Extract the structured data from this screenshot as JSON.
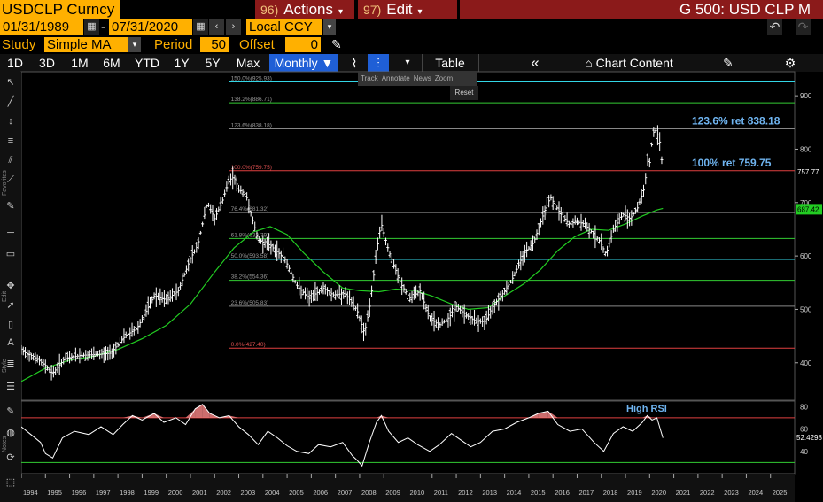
{
  "header": {
    "ticker": "USDCLP Curncy",
    "actions_num": "96)",
    "actions_label": "Actions",
    "edit_num": "97)",
    "edit_label": "Edit",
    "graph_title": "G 500: USD CLP M"
  },
  "controls": {
    "start_date": "01/31/1989",
    "date_sep": "-",
    "end_date": "07/31/2020",
    "currency": "Local CCY",
    "study_label": "Study",
    "study_value": "Simple MA",
    "period_label": "Period",
    "period_value": "50",
    "offset_label": "Offset",
    "offset_value": "0"
  },
  "toolbar": {
    "ranges": [
      "1D",
      "3D",
      "1M",
      "6M",
      "YTD",
      "1Y",
      "5Y",
      "Max"
    ],
    "frequency": "Monthly",
    "table_label": "Table",
    "chart_content_label": "Chart Content",
    "mini_tools": [
      "Track",
      "Annotate",
      "News",
      "Zoom"
    ],
    "reset_label": "Reset"
  },
  "side_labels": [
    "Favorites",
    "Edit",
    "Style",
    "Notes"
  ],
  "colors": {
    "accent": "#ffb000",
    "header_red": "#8b1a1a",
    "price_bars": "#ffffff",
    "ma_line": "#22cc22",
    "fib_red": "#e04040",
    "fib_green": "#33cc33",
    "fib_cyan": "#33d6e6",
    "fib_gray": "#888888",
    "annotation_blue": "#6fb4f0",
    "rsi_line": "#ffffff",
    "rsi_fill": "#f08080"
  },
  "chart_data": {
    "type": "ohlc",
    "frequency": "Monthly",
    "xlim": [
      1994.0,
      2026.0
    ],
    "ylim": [
      330,
      945
    ],
    "y_ticks": [
      400,
      500,
      600,
      700,
      800,
      900
    ],
    "x_ticks": [
      "1994",
      "1995",
      "1996",
      "1997",
      "1998",
      "1999",
      "2000",
      "2001",
      "2002",
      "2003",
      "2004",
      "2005",
      "2006",
      "2007",
      "2008",
      "2009",
      "2010",
      "2011",
      "2012",
      "2013",
      "2014",
      "2015",
      "2016",
      "2017",
      "2018",
      "2019",
      "2020",
      "2021",
      "2022",
      "2023",
      "2024",
      "2025"
    ],
    "price_path": [
      [
        1994.0,
        422
      ],
      [
        1994.5,
        412
      ],
      [
        1995.0,
        395
      ],
      [
        1995.3,
        380
      ],
      [
        1995.8,
        408
      ],
      [
        1996.5,
        414
      ],
      [
        1997.3,
        416
      ],
      [
        1997.7,
        418
      ],
      [
        1998.3,
        450
      ],
      [
        1998.8,
        465
      ],
      [
        1999.5,
        525
      ],
      [
        2000.0,
        518
      ],
      [
        2000.5,
        535
      ],
      [
        2001.0,
        595
      ],
      [
        2001.3,
        620
      ],
      [
        2001.7,
        700
      ],
      [
        2002.0,
        670
      ],
      [
        2002.3,
        700
      ],
      [
        2002.6,
        742
      ],
      [
        2002.8,
        748
      ],
      [
        2003.0,
        725
      ],
      [
        2003.3,
        715
      ],
      [
        2003.8,
        630
      ],
      [
        2004.3,
        620
      ],
      [
        2004.9,
        595
      ],
      [
        2005.4,
        545
      ],
      [
        2005.9,
        520
      ],
      [
        2006.5,
        540
      ],
      [
        2006.9,
        527
      ],
      [
        2007.4,
        530
      ],
      [
        2007.9,
        498
      ],
      [
        2008.2,
        455
      ],
      [
        2008.4,
        500
      ],
      [
        2008.8,
        640
      ],
      [
        2008.9,
        660
      ],
      [
        2009.2,
        610
      ],
      [
        2009.7,
        548
      ],
      [
        2010.1,
        520
      ],
      [
        2010.5,
        535
      ],
      [
        2010.9,
        484
      ],
      [
        2011.3,
        470
      ],
      [
        2011.7,
        485
      ],
      [
        2012.0,
        505
      ],
      [
        2012.4,
        490
      ],
      [
        2012.8,
        478
      ],
      [
        2013.2,
        477
      ],
      [
        2013.5,
        505
      ],
      [
        2013.9,
        528
      ],
      [
        2014.3,
        555
      ],
      [
        2014.8,
        605
      ],
      [
        2015.2,
        625
      ],
      [
        2015.7,
        690
      ],
      [
        2015.9,
        710
      ],
      [
        2016.3,
        680
      ],
      [
        2016.7,
        658
      ],
      [
        2016.9,
        665
      ],
      [
        2017.3,
        660
      ],
      [
        2017.6,
        645
      ],
      [
        2017.9,
        630
      ],
      [
        2018.2,
        603
      ],
      [
        2018.5,
        650
      ],
      [
        2018.9,
        678
      ],
      [
        2019.2,
        670
      ],
      [
        2019.5,
        690
      ],
      [
        2019.8,
        730
      ],
      [
        2019.9,
        780
      ],
      [
        2020.0,
        775
      ],
      [
        2020.1,
        815
      ],
      [
        2020.2,
        840
      ],
      [
        2020.4,
        820
      ],
      [
        2020.55,
        760
      ]
    ],
    "moving_average": {
      "name": "SMA 50",
      "points": [
        [
          1994.0,
          365
        ],
        [
          1995.0,
          390
        ],
        [
          1996.0,
          405
        ],
        [
          1997.0,
          412
        ],
        [
          1998.0,
          425
        ],
        [
          1999.0,
          445
        ],
        [
          2000.0,
          470
        ],
        [
          2001.0,
          510
        ],
        [
          2002.0,
          570
        ],
        [
          2002.8,
          615
        ],
        [
          2003.6,
          645
        ],
        [
          2004.3,
          655
        ],
        [
          2005.0,
          640
        ],
        [
          2005.7,
          605
        ],
        [
          2006.5,
          570
        ],
        [
          2007.3,
          540
        ],
        [
          2008.0,
          535
        ],
        [
          2008.8,
          533
        ],
        [
          2009.5,
          538
        ],
        [
          2010.3,
          535
        ],
        [
          2011.0,
          525
        ],
        [
          2011.8,
          510
        ],
        [
          2012.5,
          500
        ],
        [
          2013.3,
          503
        ],
        [
          2014.0,
          525
        ],
        [
          2014.8,
          548
        ],
        [
          2015.5,
          575
        ],
        [
          2016.2,
          610
        ],
        [
          2016.9,
          636
        ],
        [
          2017.6,
          650
        ],
        [
          2018.3,
          648
        ],
        [
          2019.0,
          660
        ],
        [
          2019.7,
          675
        ],
        [
          2020.3,
          686
        ],
        [
          2020.55,
          689
        ]
      ]
    },
    "last_price": 757.77,
    "last_ma": 687.42,
    "fibonacci_levels": [
      {
        "label": "0.0%(427.40)",
        "value": 427.4,
        "color": "#e04040"
      },
      {
        "label": "23.6%(505.83)",
        "value": 505.83,
        "color": "#888888"
      },
      {
        "label": "38.2%(554.36)",
        "value": 554.36,
        "color": "#33cc33"
      },
      {
        "label": "50.0%(593.58)",
        "value": 593.58,
        "color": "#33d6e6"
      },
      {
        "label": "61.8%(632.79)",
        "value": 632.79,
        "color": "#33cc33"
      },
      {
        "label": "76.4%(681.32)",
        "value": 681.32,
        "color": "#888888"
      },
      {
        "label": "100.0%(759.75)",
        "value": 759.75,
        "color": "#e04040"
      },
      {
        "label": "123.6%(838.18)",
        "value": 838.18,
        "color": "#888888"
      },
      {
        "label": "138.2%(886.71)",
        "value": 886.71,
        "color": "#33cc33"
      },
      {
        "label": "150.0%(925.93)",
        "value": 925.93,
        "color": "#33d6e6"
      }
    ],
    "annotations": [
      {
        "text": "123.6% ret 838.18",
        "value": 838.18
      },
      {
        "text": "100% ret 759.75",
        "value": 759.75
      }
    ],
    "rsi": {
      "ylim": [
        20,
        85
      ],
      "y_ticks": [
        40,
        60,
        80
      ],
      "levels": [
        70,
        30
      ],
      "last_value": 52.4298,
      "annotation": "High RSI",
      "points": [
        [
          1994.0,
          62
        ],
        [
          1994.4,
          55
        ],
        [
          1994.8,
          48
        ],
        [
          1995.0,
          38
        ],
        [
          1995.3,
          34
        ],
        [
          1995.7,
          52
        ],
        [
          1996.2,
          58
        ],
        [
          1996.8,
          55
        ],
        [
          1997.3,
          62
        ],
        [
          1997.8,
          55
        ],
        [
          1998.2,
          64
        ],
        [
          1998.6,
          72
        ],
        [
          1999.0,
          68
        ],
        [
          1999.5,
          74
        ],
        [
          1999.9,
          66
        ],
        [
          2000.4,
          70
        ],
        [
          2000.8,
          64
        ],
        [
          2001.2,
          78
        ],
        [
          2001.5,
          82
        ],
        [
          2001.8,
          74
        ],
        [
          2002.2,
          70
        ],
        [
          2002.6,
          72
        ],
        [
          2003.0,
          62
        ],
        [
          2003.4,
          55
        ],
        [
          2003.8,
          46
        ],
        [
          2004.2,
          58
        ],
        [
          2004.6,
          52
        ],
        [
          2005.0,
          45
        ],
        [
          2005.4,
          40
        ],
        [
          2005.9,
          38
        ],
        [
          2006.3,
          46
        ],
        [
          2006.8,
          44
        ],
        [
          2007.3,
          48
        ],
        [
          2007.7,
          36
        ],
        [
          2007.9,
          32
        ],
        [
          2008.1,
          27
        ],
        [
          2008.4,
          48
        ],
        [
          2008.7,
          66
        ],
        [
          2008.9,
          72
        ],
        [
          2009.2,
          58
        ],
        [
          2009.6,
          48
        ],
        [
          2010.0,
          52
        ],
        [
          2010.4,
          46
        ],
        [
          2010.9,
          40
        ],
        [
          2011.3,
          46
        ],
        [
          2011.8,
          56
        ],
        [
          2012.2,
          50
        ],
        [
          2012.6,
          44
        ],
        [
          2013.0,
          48
        ],
        [
          2013.5,
          58
        ],
        [
          2014.0,
          60
        ],
        [
          2014.5,
          66
        ],
        [
          2015.0,
          70
        ],
        [
          2015.4,
          74
        ],
        [
          2015.8,
          76
        ],
        [
          2016.2,
          64
        ],
        [
          2016.7,
          58
        ],
        [
          2017.2,
          60
        ],
        [
          2017.7,
          48
        ],
        [
          2018.1,
          40
        ],
        [
          2018.5,
          56
        ],
        [
          2018.9,
          62
        ],
        [
          2019.3,
          58
        ],
        [
          2019.7,
          66
        ],
        [
          2019.9,
          72
        ],
        [
          2020.1,
          68
        ],
        [
          2020.3,
          70
        ],
        [
          2020.55,
          52
        ]
      ]
    }
  }
}
